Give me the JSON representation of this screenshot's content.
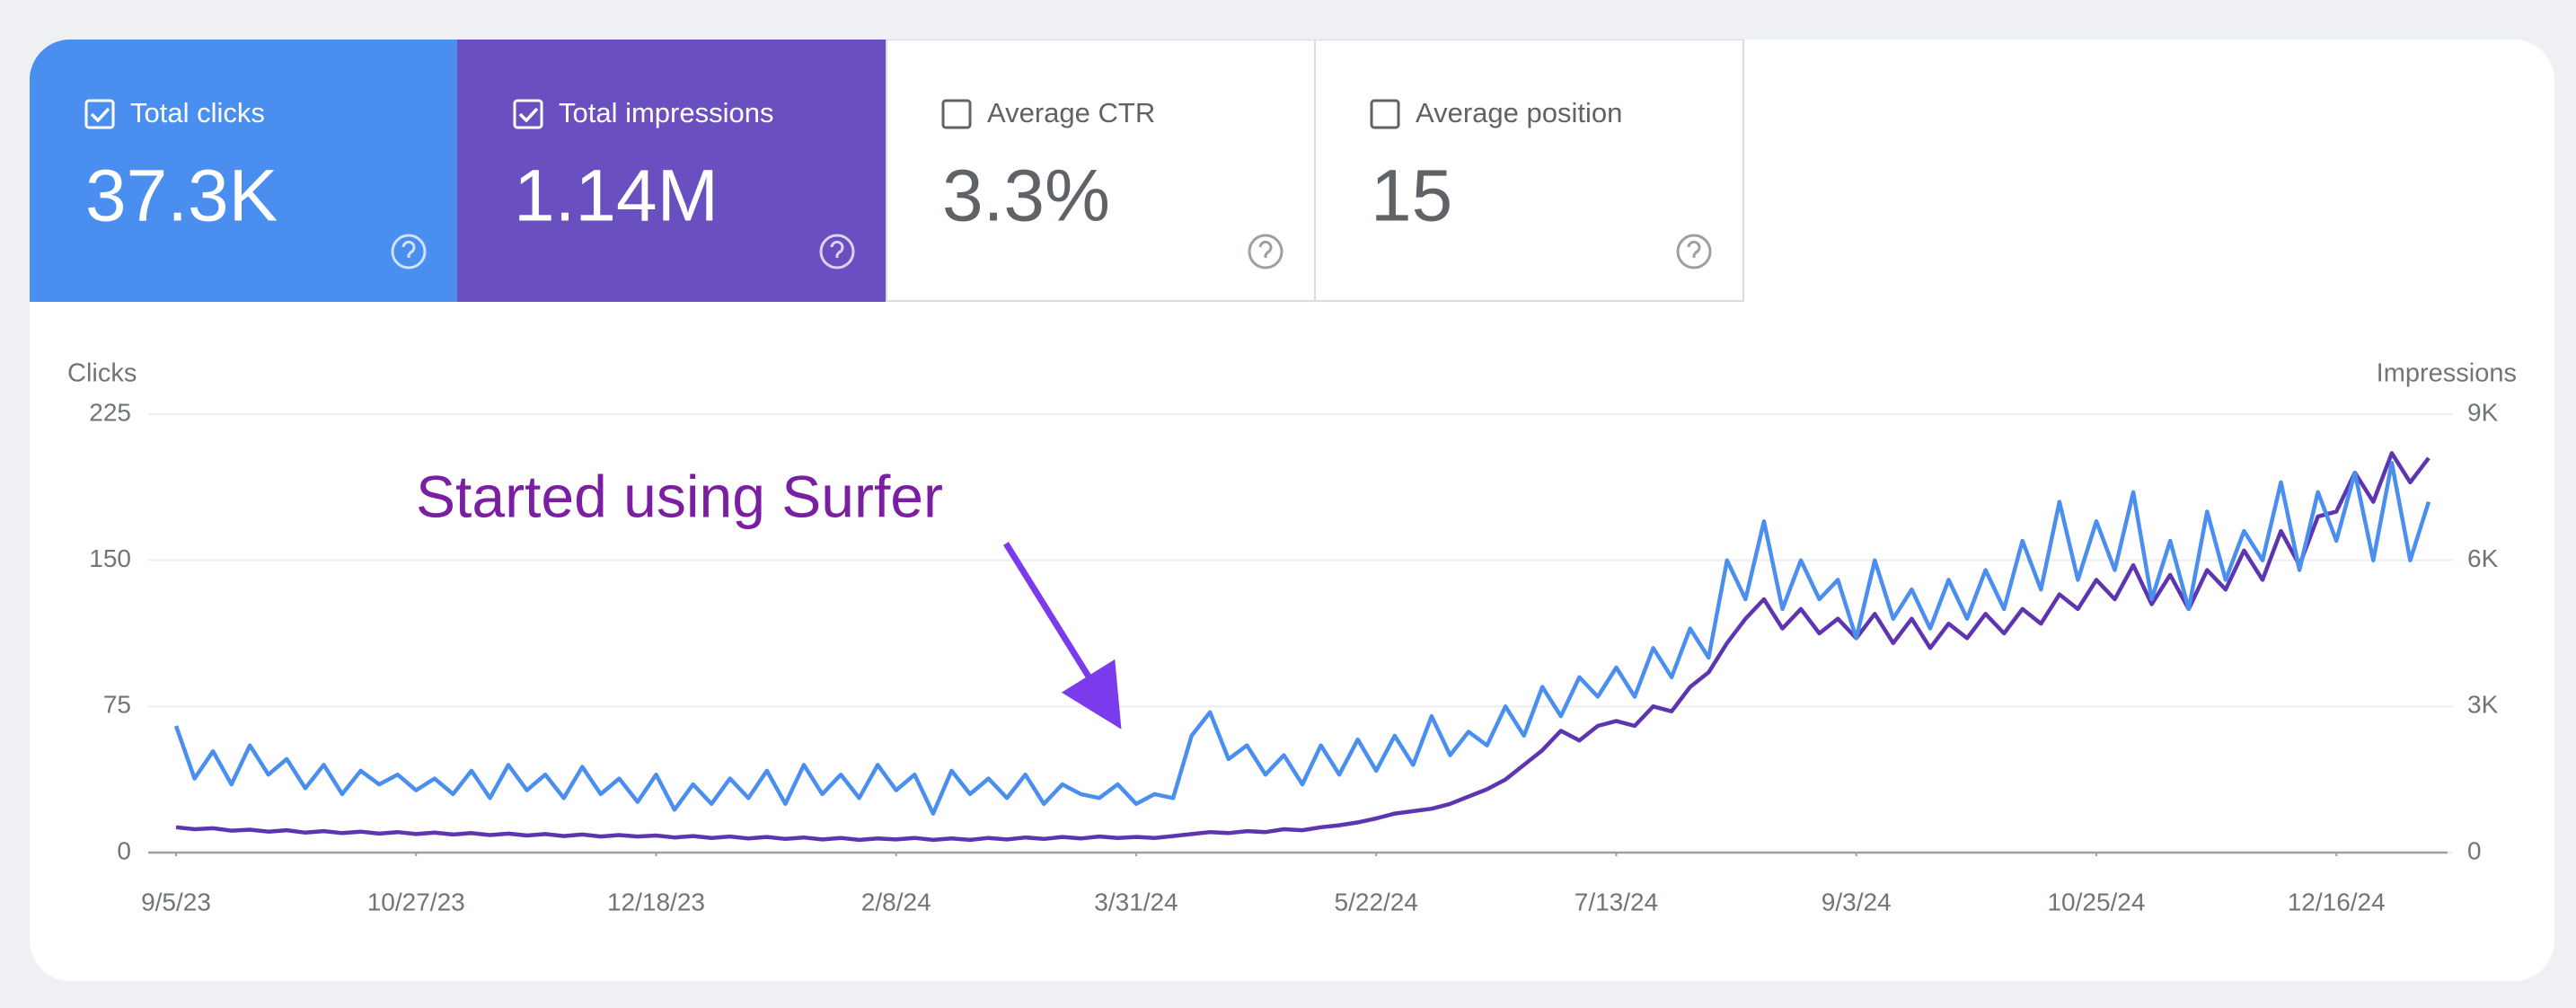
{
  "metrics": [
    {
      "label": "Total clicks",
      "value": "37.3K",
      "checked": true
    },
    {
      "label": "Total impressions",
      "value": "1.14M",
      "checked": true
    },
    {
      "label": "Average CTR",
      "value": "3.3%",
      "checked": false
    },
    {
      "label": "Average position",
      "value": "15",
      "checked": false
    }
  ],
  "chart_data": {
    "type": "line",
    "annotation": "Started using Surfer",
    "y_label": "Clicks",
    "y2_label": "Impressions",
    "x": [
      "9/5/23",
      "9/9/23",
      "9/13/23",
      "9/17/23",
      "9/21/23",
      "9/25/23",
      "9/29/23",
      "10/3/23",
      "10/7/23",
      "10/11/23",
      "10/15/23",
      "10/19/23",
      "10/23/23",
      "10/27/23",
      "10/31/23",
      "11/4/23",
      "11/8/23",
      "11/12/23",
      "11/16/23",
      "11/20/23",
      "11/24/23",
      "11/28/23",
      "12/2/23",
      "12/6/23",
      "12/10/23",
      "12/14/23",
      "12/18/23",
      "12/22/23",
      "12/26/23",
      "12/30/23",
      "1/3/24",
      "1/7/24",
      "1/11/24",
      "1/15/24",
      "1/19/24",
      "1/23/24",
      "1/27/24",
      "1/31/24",
      "2/4/24",
      "2/8/24",
      "2/12/24",
      "2/16/24",
      "2/20/24",
      "2/24/24",
      "2/28/24",
      "3/3/24",
      "3/7/24",
      "3/11/24",
      "3/15/24",
      "3/19/24",
      "3/23/24",
      "3/27/24",
      "3/31/24",
      "4/4/24",
      "4/8/24",
      "4/12/24",
      "4/16/24",
      "4/20/24",
      "4/24/24",
      "4/28/24",
      "5/2/24",
      "5/6/24",
      "5/10/24",
      "5/14/24",
      "5/18/24",
      "5/22/24",
      "5/26/24",
      "5/30/24",
      "6/3/24",
      "6/7/24",
      "6/11/24",
      "6/15/24",
      "6/19/24",
      "6/23/24",
      "6/27/24",
      "7/1/24",
      "7/5/24",
      "7/9/24",
      "7/13/24",
      "7/17/24",
      "7/21/24",
      "7/25/24",
      "7/29/24",
      "8/2/24",
      "8/6/24",
      "8/10/24",
      "8/14/24",
      "8/18/24",
      "8/22/24",
      "8/26/24",
      "8/30/24",
      "9/3/24",
      "9/7/24",
      "9/11/24",
      "9/15/24",
      "9/19/24",
      "9/23/24",
      "9/27/24",
      "10/1/24",
      "10/5/24",
      "10/9/24",
      "10/13/24",
      "10/17/24",
      "10/21/24",
      "10/25/24",
      "10/29/24",
      "11/2/24",
      "11/6/24",
      "11/10/24",
      "11/14/24",
      "11/18/24",
      "11/22/24",
      "11/26/24",
      "11/30/24",
      "12/4/24",
      "12/8/24",
      "12/12/24",
      "12/16/24",
      "12/20/24",
      "12/24/24",
      "12/28/24",
      "1/1/25",
      "1/5/25"
    ],
    "xlim": [
      "9/5/23",
      "1/5/25"
    ],
    "xticks": [
      "9/5/23",
      "10/27/23",
      "12/18/23",
      "2/8/24",
      "3/31/24",
      "5/22/24",
      "7/13/24",
      "9/3/24",
      "10/25/24",
      "12/16/24"
    ],
    "ylim": [
      0,
      225
    ],
    "yticks": [
      0,
      75,
      150,
      225
    ],
    "y2lim": [
      0,
      9000
    ],
    "y2ticks": [
      0,
      {
        "value": 3000,
        "label": "3K"
      },
      {
        "value": 6000,
        "label": "6K"
      },
      {
        "value": 9000,
        "label": "9K"
      }
    ],
    "grid": true,
    "series": [
      {
        "name": "Clicks",
        "color": "#4a8ef0",
        "values": [
          65,
          38,
          52,
          35,
          55,
          40,
          48,
          33,
          45,
          30,
          42,
          35,
          40,
          32,
          38,
          30,
          42,
          28,
          45,
          32,
          40,
          28,
          44,
          30,
          38,
          26,
          40,
          22,
          35,
          25,
          38,
          28,
          42,
          25,
          45,
          30,
          40,
          28,
          45,
          32,
          40,
          20,
          42,
          30,
          38,
          28,
          40,
          25,
          35,
          30,
          28,
          35,
          25,
          30,
          28,
          60,
          72,
          48,
          55,
          40,
          50,
          35,
          55,
          40,
          58,
          42,
          60,
          45,
          70,
          50,
          62,
          55,
          75,
          60,
          85,
          70,
          90,
          80,
          95,
          80,
          105,
          90,
          115,
          100,
          150,
          130,
          170,
          125,
          150,
          130,
          140,
          110,
          150,
          120,
          135,
          115,
          140,
          120,
          145,
          125,
          160,
          135,
          180,
          140,
          170,
          145,
          185,
          130,
          160,
          125,
          175,
          140,
          165,
          150,
          190,
          145,
          185,
          160,
          195,
          150,
          200,
          150,
          180
        ]
      },
      {
        "name": "Impressions",
        "color": "#5e35b1",
        "axis": "y2",
        "values": [
          520,
          480,
          500,
          450,
          470,
          430,
          460,
          410,
          440,
          400,
          430,
          390,
          420,
          380,
          410,
          370,
          400,
          360,
          390,
          350,
          380,
          340,
          370,
          330,
          360,
          330,
          350,
          310,
          340,
          300,
          330,
          290,
          320,
          280,
          310,
          270,
          300,
          260,
          290,
          270,
          300,
          260,
          290,
          260,
          300,
          270,
          310,
          280,
          320,
          290,
          330,
          300,
          320,
          300,
          340,
          380,
          420,
          400,
          440,
          420,
          480,
          460,
          520,
          560,
          620,
          700,
          800,
          850,
          900,
          1000,
          1150,
          1300,
          1500,
          1800,
          2100,
          2500,
          2300,
          2600,
          2700,
          2600,
          3000,
          2900,
          3400,
          3700,
          4300,
          4800,
          5200,
          4600,
          5000,
          4500,
          4800,
          4400,
          4900,
          4300,
          4800,
          4200,
          4700,
          4400,
          4900,
          4500,
          5000,
          4700,
          5300,
          5000,
          5600,
          5200,
          5900,
          5100,
          5700,
          5000,
          5800,
          5400,
          6200,
          5600,
          6600,
          5900,
          6900,
          7000,
          7800,
          7200,
          8200,
          7600,
          8100
        ]
      }
    ]
  }
}
